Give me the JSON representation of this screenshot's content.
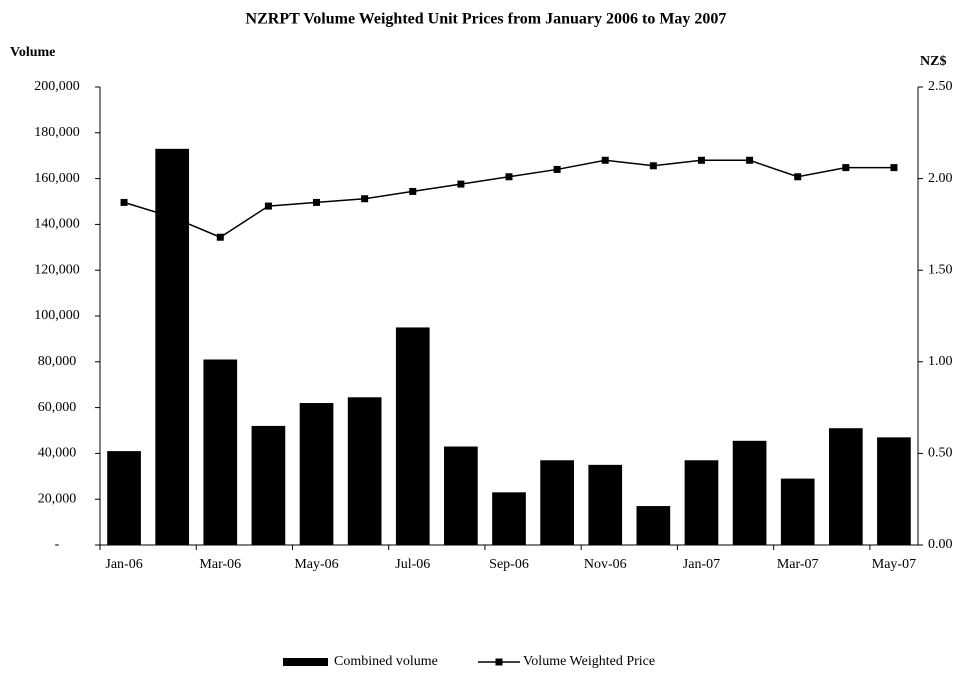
{
  "chart_data": {
    "type": "bar-line",
    "title": "NZRPT Volume Weighted Unit Prices  from January 2006 to May 2007",
    "y_label": "Volume",
    "y2_label": "NZ$",
    "categories": [
      "Jan-06",
      null,
      "Mar-06",
      null,
      "May-06",
      null,
      "Jul-06",
      null,
      "Sep-06",
      null,
      "Nov-06",
      null,
      "Jan-07",
      null,
      "Mar-07",
      null,
      "May-07"
    ],
    "series": [
      {
        "name": "Combined volume",
        "type": "bar",
        "color": "#000000",
        "values": [
          41000,
          173000,
          81000,
          52000,
          62000,
          64500,
          95000,
          43000,
          23000,
          37000,
          35000,
          17000,
          37000,
          45500,
          29000,
          51000,
          47000
        ]
      },
      {
        "name": "Volume Weighted Price",
        "type": "line",
        "axis": "y2",
        "color": "#000000",
        "values": [
          1.87,
          1.79,
          1.68,
          1.85,
          1.87,
          1.89,
          1.93,
          1.97,
          2.01,
          2.05,
          2.1,
          2.07,
          2.1,
          2.1,
          2.01,
          2.06,
          2.06
        ]
      }
    ],
    "ylim": [
      0,
      200000
    ],
    "yticks": [
      {
        "value": 0,
        "label": "-"
      },
      {
        "value": 20000,
        "label": "20,000"
      },
      {
        "value": 40000,
        "label": "40,000"
      },
      {
        "value": 60000,
        "label": "60,000"
      },
      {
        "value": 80000,
        "label": "80,000"
      },
      {
        "value": 100000,
        "label": "100,000"
      },
      {
        "value": 120000,
        "label": "120,000"
      },
      {
        "value": 140000,
        "label": "140,000"
      },
      {
        "value": 160000,
        "label": "160,000"
      },
      {
        "value": 180000,
        "label": "180,000"
      },
      {
        "value": 200000,
        "label": "200,000"
      }
    ],
    "y2lim": [
      0,
      2.5
    ],
    "y2ticks": [
      {
        "value": 0,
        "label": "0.00"
      },
      {
        "value": 0.5,
        "label": "0.50"
      },
      {
        "value": 1,
        "label": "1.00"
      },
      {
        "value": 1.5,
        "label": "1.50"
      },
      {
        "value": 2,
        "label": "2.00"
      },
      {
        "value": 2.5,
        "label": "2.50"
      }
    ]
  }
}
